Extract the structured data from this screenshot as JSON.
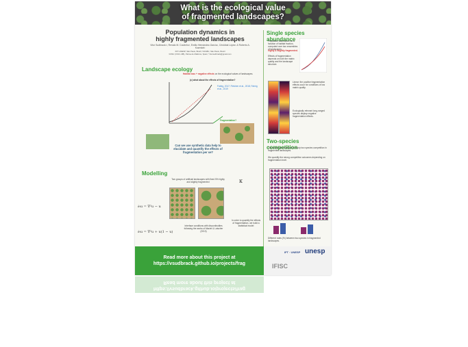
{
  "banner": {
    "title_line1": "What is the ecological value",
    "title_line2": "of fragmented landscapes?"
  },
  "header": {
    "title_line1": "Population dynamics in",
    "title_line2": "highly fragmented landscapes",
    "authors": "Vitor Sudbrack¹², Renato M. Coutinho³, Emilio Hernández-García¹, Cristóbal López¹ & Roberto A. Kraenkel²",
    "affil1": "²IFT-UNESP, São Paulo, Brazil; ³UFABC, São Paulo, Brazil",
    "affil2": "¹IFISC (CSIC-UIB), Palma de Mallorca, Spain; *vitorsudbrack@gmail.com"
  },
  "landscape": {
    "title": "Landscape ecology",
    "habitat_loss": "Habitat loss",
    "negative_effects": "+ negative effects",
    "habitat_rest": " on the ecological values of landscapes.",
    "question": "(c) what about the effects of fragmentation?",
    "fragmentation_label": "Fragmentation?",
    "ref": "Fahrig, 2017; Fletcher et al., 2018; Fahrig et al., 2019",
    "question_box": "Can we use synthetic data help to elucidate and quantify the effects of fragmentation per se?"
  },
  "modelling": {
    "title": "Modelling",
    "desc": "Two groups of artificial landscapes with fixed 5% highly and slightly fragmented",
    "eq1": "∂ₜu = ∇²u − u",
    "eq2": "∂ₜu = ∇²u + u(1 − u)",
    "interface": "Interface conditions with discontinuities following the works of Maciel & Lutscher (2013)",
    "kappa": "κ",
    "quantify": "In order to quantify the effects of fragmentation, we build a statistical model"
  },
  "single": {
    "title": "Single species abundance",
    "text1": "Population abundance as a function of habitat fraction, computed over two ensembles of landscapes:",
    "text2": "highly & slightly fragmented.",
    "text3": "Effects of fragmentation depends on both the matrix quality and the landscape structure.",
    "text4": "Linear: the positive fragmentation effects occur for conditions of low matrix quality.",
    "text5": "Ecologically relevant long-ranged species display negative fragmentation effects."
  },
  "two": {
    "title": "Two-species competition",
    "text1": "The model was extended to study two species competition in fragmented landscapes.",
    "text2": "Different rates (%) between two species in fragmented landscapes.",
    "text3": "We quantify the strong competitive outcomes depending on fragmentation level."
  },
  "footer": {
    "line1": "Read more about this project at",
    "line2": "https://vsudbrack.github.io/projects/frag"
  },
  "logos": {
    "ift": "IFT · UNESP",
    "unesp": "unesp",
    "ifisc": "IFISC"
  },
  "colors": {
    "green": "#3aa23a",
    "banner": "#3d3d3d",
    "accent": "#d23b3b"
  }
}
